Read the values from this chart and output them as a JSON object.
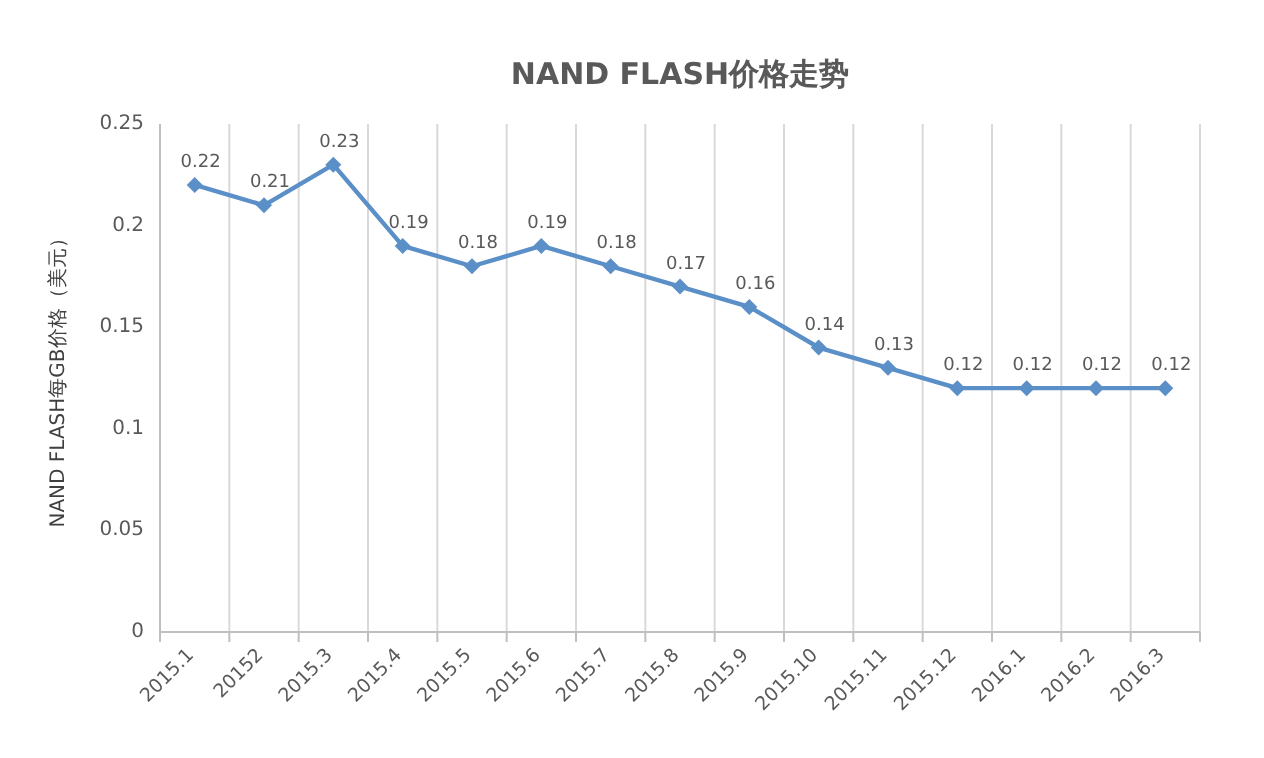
{
  "chart_data": {
    "type": "line",
    "title": "NAND FLASH价格走势",
    "ylabel": "NAND FLASH每GB价格（美元）",
    "categories": [
      "2015.1",
      "20152",
      "2015.3",
      "2015.4",
      "2015.5",
      "2015.6",
      "2015.7",
      "2015.8",
      "2015.9",
      "2015.10",
      "2015.11",
      "2015.12",
      "2016.1",
      "2016.2",
      "2016.3"
    ],
    "series": [
      {
        "color": "#5b8fc7",
        "values": [
          0.22,
          0.21,
          0.23,
          0.19,
          0.18,
          0.19,
          0.18,
          0.17,
          0.16,
          0.14,
          0.13,
          0.12,
          0.12,
          0.12,
          0.12
        ]
      }
    ],
    "ylim": [
      0,
      0.25
    ],
    "yticks": [
      0,
      0.05,
      0.1,
      0.15,
      0.2,
      0.25
    ],
    "data_labels": true,
    "grid": "x",
    "marker": "diamond",
    "line_style": "solid"
  }
}
